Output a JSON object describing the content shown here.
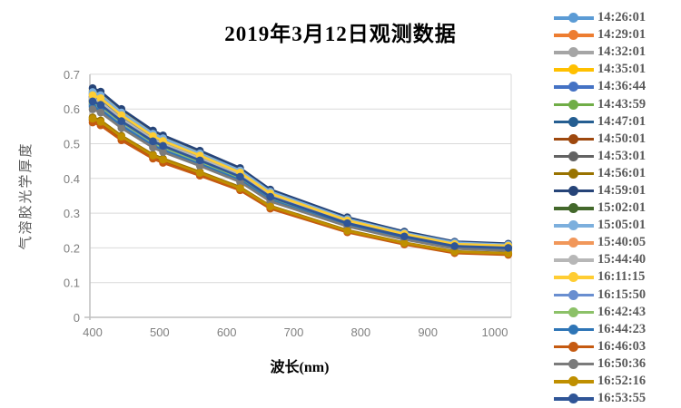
{
  "chart_data": {
    "type": "line",
    "title": "2019年3月12日观测数据",
    "xlabel": "波长(nm)",
    "ylabel": "气溶胶光学厚度",
    "xlim": [
      400,
      1020
    ],
    "ylim": [
      0,
      0.7
    ],
    "grid": true,
    "legend_position": "right",
    "x_tick_values": [
      400,
      500,
      600,
      700,
      800,
      900,
      1000
    ],
    "x_tick_labels": [
      "400",
      "500",
      "600",
      "700",
      "800",
      "900",
      "1000"
    ],
    "y_tick_values": [
      0,
      0.1,
      0.2,
      0.3,
      0.4,
      0.5,
      0.6,
      0.7
    ],
    "y_tick_labels": [
      "0",
      "0.1",
      "0.2",
      "0.3",
      "0.4",
      "0.5",
      "0.6",
      "0.7"
    ],
    "x": [
      400,
      412,
      443,
      490,
      505,
      560,
      620,
      665,
      780,
      865,
      940,
      1020
    ],
    "series": [
      {
        "name": "14:26:01",
        "color": "#5B9BD5",
        "values": [
          0.647,
          0.637,
          0.588,
          0.527,
          0.514,
          0.47,
          0.421,
          0.361,
          0.282,
          0.242,
          0.214,
          0.208
        ]
      },
      {
        "name": "14:29:01",
        "color": "#ED7D31",
        "values": [
          0.632,
          0.623,
          0.575,
          0.515,
          0.502,
          0.46,
          0.412,
          0.353,
          0.276,
          0.237,
          0.209,
          0.203
        ]
      },
      {
        "name": "14:32:01",
        "color": "#A5A5A5",
        "values": [
          0.639,
          0.629,
          0.581,
          0.521,
          0.507,
          0.465,
          0.416,
          0.356,
          0.279,
          0.239,
          0.211,
          0.205
        ]
      },
      {
        "name": "14:35:01",
        "color": "#FFC000",
        "values": [
          0.653,
          0.644,
          0.594,
          0.533,
          0.519,
          0.475,
          0.426,
          0.364,
          0.285,
          0.245,
          0.216,
          0.21
        ]
      },
      {
        "name": "14:36:44",
        "color": "#4472C4",
        "values": [
          0.643,
          0.633,
          0.584,
          0.524,
          0.51,
          0.468,
          0.419,
          0.358,
          0.28,
          0.241,
          0.212,
          0.206
        ]
      },
      {
        "name": "14:43:59",
        "color": "#70AD47",
        "values": [
          0.627,
          0.618,
          0.57,
          0.511,
          0.498,
          0.456,
          0.409,
          0.35,
          0.274,
          0.235,
          0.207,
          0.201
        ]
      },
      {
        "name": "14:47:01",
        "color": "#255E91",
        "values": [
          0.635,
          0.625,
          0.577,
          0.518,
          0.504,
          0.462,
          0.414,
          0.354,
          0.277,
          0.238,
          0.21,
          0.204
        ]
      },
      {
        "name": "14:50:01",
        "color": "#9E480E",
        "values": [
          0.568,
          0.559,
          0.516,
          0.463,
          0.451,
          0.413,
          0.37,
          0.316,
          0.248,
          0.212,
          0.187,
          0.182
        ]
      },
      {
        "name": "14:53:01",
        "color": "#636363",
        "values": [
          0.614,
          0.605,
          0.558,
          0.5,
          0.487,
          0.446,
          0.4,
          0.342,
          0.268,
          0.23,
          0.203,
          0.197
        ]
      },
      {
        "name": "14:56:01",
        "color": "#997300",
        "values": [
          0.576,
          0.567,
          0.523,
          0.469,
          0.457,
          0.419,
          0.375,
          0.321,
          0.251,
          0.215,
          0.19,
          0.185
        ]
      },
      {
        "name": "14:59:01",
        "color": "#264478",
        "values": [
          0.66,
          0.65,
          0.6,
          0.538,
          0.524,
          0.48,
          0.43,
          0.368,
          0.288,
          0.247,
          0.218,
          0.212
        ]
      },
      {
        "name": "15:02:01",
        "color": "#43682B",
        "values": [
          0.624,
          0.615,
          0.568,
          0.509,
          0.496,
          0.454,
          0.407,
          0.348,
          0.272,
          0.234,
          0.206,
          0.201
        ]
      },
      {
        "name": "15:05:01",
        "color": "#7CAFDD",
        "values": [
          0.649,
          0.64,
          0.59,
          0.529,
          0.516,
          0.472,
          0.423,
          0.362,
          0.283,
          0.243,
          0.215,
          0.209
        ]
      },
      {
        "name": "15:40:05",
        "color": "#F1975A",
        "values": [
          0.62,
          0.611,
          0.564,
          0.506,
          0.493,
          0.451,
          0.404,
          0.346,
          0.271,
          0.232,
          0.205,
          0.199
        ]
      },
      {
        "name": "15:44:40",
        "color": "#B7B7B7",
        "values": [
          0.63,
          0.62,
          0.572,
          0.513,
          0.5,
          0.458,
          0.41,
          0.351,
          0.275,
          0.236,
          0.208,
          0.202
        ]
      },
      {
        "name": "16:11:15",
        "color": "#FFCD33",
        "values": [
          0.64,
          0.631,
          0.582,
          0.522,
          0.508,
          0.466,
          0.417,
          0.357,
          0.279,
          0.24,
          0.211,
          0.206
        ]
      },
      {
        "name": "16:15:50",
        "color": "#698ED0",
        "values": [
          0.611,
          0.602,
          0.556,
          0.498,
          0.485,
          0.444,
          0.398,
          0.341,
          0.267,
          0.229,
          0.202,
          0.196
        ]
      },
      {
        "name": "16:42:43",
        "color": "#8CC168",
        "values": [
          0.618,
          0.608,
          0.562,
          0.504,
          0.49,
          0.449,
          0.402,
          0.344,
          0.27,
          0.231,
          0.204,
          0.198
        ]
      },
      {
        "name": "16:44:23",
        "color": "#2E75B6",
        "values": [
          0.606,
          0.597,
          0.551,
          0.494,
          0.481,
          0.441,
          0.395,
          0.338,
          0.264,
          0.227,
          0.2,
          0.195
        ]
      },
      {
        "name": "16:46:03",
        "color": "#C55A11",
        "values": [
          0.561,
          0.553,
          0.51,
          0.457,
          0.445,
          0.408,
          0.366,
          0.313,
          0.245,
          0.21,
          0.185,
          0.18
        ]
      },
      {
        "name": "16:50:36",
        "color": "#7B7B7B",
        "values": [
          0.599,
          0.59,
          0.545,
          0.489,
          0.476,
          0.436,
          0.39,
          0.334,
          0.262,
          0.224,
          0.198,
          0.192
        ]
      },
      {
        "name": "16:52:16",
        "color": "#BF8F00",
        "values": [
          0.572,
          0.563,
          0.52,
          0.466,
          0.454,
          0.416,
          0.372,
          0.319,
          0.249,
          0.214,
          0.189,
          0.184
        ]
      },
      {
        "name": "16:53:55",
        "color": "#2F5597",
        "values": [
          0.622,
          0.612,
          0.565,
          0.507,
          0.494,
          0.452,
          0.405,
          0.347,
          0.271,
          0.233,
          0.205,
          0.2
        ]
      }
    ]
  },
  "colors": {
    "gridline": "#D9D9D9",
    "axis_line": "#BFBFBF",
    "tick_label": "#7F7F7F",
    "legend_text": "#595959",
    "title_text": "#000000"
  }
}
